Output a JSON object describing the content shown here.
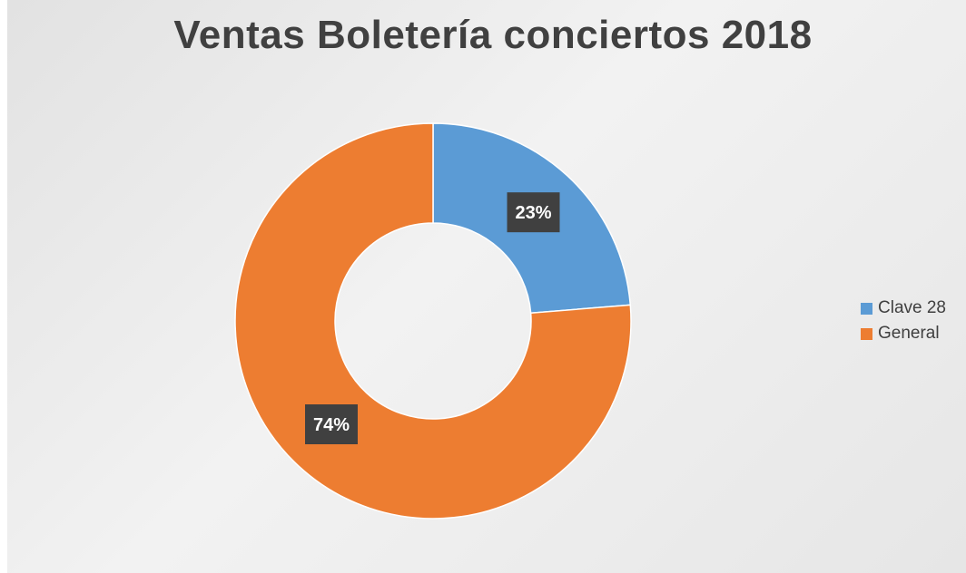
{
  "chart_data": {
    "type": "pie",
    "title": "Ventas Boletería conciertos 2018",
    "donut": true,
    "series": [
      {
        "name": "Clave 28",
        "value": 23,
        "label": "23%",
        "color": "#5B9BD5"
      },
      {
        "name": "General",
        "value": 74,
        "label": "74%",
        "color": "#ED7D31"
      }
    ],
    "legend_position": "right"
  }
}
